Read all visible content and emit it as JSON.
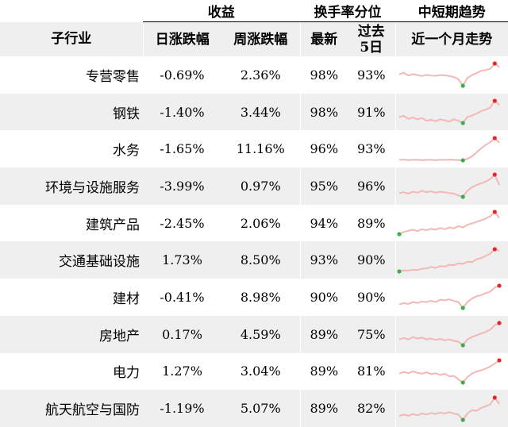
{
  "header": {
    "group_return": "收益",
    "group_turnover": "换手率分位",
    "group_trend": "中短期趋势",
    "col_industry": "子行业",
    "col_daily": "日涨跌幅",
    "col_weekly": "周涨跌幅",
    "col_latest": "最新",
    "col_past5_line1": "过去",
    "col_past5_line2": "5日",
    "col_month": "近一个月走势"
  },
  "colors": {
    "line": "#f4b7b7",
    "max_marker": "#e8262a",
    "min_marker": "#3fae49",
    "stripe": "#efefef"
  },
  "chart_data": {
    "type": "table",
    "columns": [
      "子行业",
      "日涨跌幅",
      "周涨跌幅",
      "最新",
      "过去5日",
      "近一个月走势"
    ],
    "rows": [
      {
        "name": "专营零售",
        "daily": "-0.69%",
        "weekly": "2.36%",
        "latest": "98%",
        "past5": "93%",
        "trend": [
          0.55,
          0.62,
          0.5,
          0.56,
          0.52,
          0.48,
          0.53,
          0.5,
          0.49,
          0.52,
          0.51,
          0.48,
          0.44,
          0.35,
          0.08,
          0.4,
          0.52,
          0.6,
          0.7,
          0.73,
          0.78,
          1.0,
          0.85
        ]
      },
      {
        "name": "钢铁",
        "daily": "-1.40%",
        "weekly": "3.44%",
        "latest": "98%",
        "past5": "91%",
        "trend": [
          0.3,
          0.35,
          0.22,
          0.28,
          0.2,
          0.26,
          0.14,
          0.18,
          0.12,
          0.2,
          0.16,
          0.1,
          0.2,
          0.14,
          0.04,
          0.3,
          0.36,
          0.45,
          0.55,
          0.62,
          0.7,
          1.0,
          0.82
        ]
      },
      {
        "name": "水务",
        "daily": "-1.65%",
        "weekly": "11.16%",
        "latest": "96%",
        "past5": "93%",
        "trend": [
          0.05,
          0.06,
          0.04,
          0.05,
          0.05,
          0.04,
          0.05,
          0.05,
          0.04,
          0.05,
          0.05,
          0.06,
          0.05,
          0.04,
          0.03,
          0.1,
          0.2,
          0.38,
          0.55,
          0.7,
          0.82,
          1.0,
          0.8
        ]
      },
      {
        "name": "环境与设施服务",
        "daily": "-3.99%",
        "weekly": "0.97%",
        "latest": "95%",
        "past5": "96%",
        "trend": [
          0.2,
          0.24,
          0.18,
          0.26,
          0.22,
          0.3,
          0.24,
          0.28,
          0.22,
          0.26,
          0.24,
          0.2,
          0.18,
          0.1,
          0.04,
          0.3,
          0.45,
          0.55,
          0.62,
          0.7,
          0.8,
          1.0,
          0.55
        ]
      },
      {
        "name": "建筑产品",
        "daily": "-2.45%",
        "weekly": "2.06%",
        "latest": "94%",
        "past5": "89%",
        "trend": [
          0.0,
          0.1,
          0.15,
          0.2,
          0.14,
          0.22,
          0.18,
          0.24,
          0.2,
          0.28,
          0.22,
          0.3,
          0.26,
          0.36,
          0.3,
          0.42,
          0.48,
          0.55,
          0.62,
          0.7,
          0.8,
          1.0,
          0.72
        ]
      },
      {
        "name": "交通基础设施",
        "daily": "1.73%",
        "weekly": "8.50%",
        "latest": "93%",
        "past5": "90%",
        "trend": [
          0.0,
          0.05,
          0.04,
          0.08,
          0.06,
          0.12,
          0.14,
          0.2,
          0.16,
          0.24,
          0.22,
          0.3,
          0.28,
          0.36,
          0.34,
          0.44,
          0.42,
          0.55,
          0.6,
          0.7,
          0.8,
          1.0,
          0.92
        ]
      },
      {
        "name": "建材",
        "daily": "-0.41%",
        "weekly": "8.98%",
        "latest": "90%",
        "past5": "90%",
        "trend": [
          0.2,
          0.26,
          0.22,
          0.3,
          0.26,
          0.32,
          0.3,
          0.36,
          0.3,
          0.4,
          0.38,
          0.42,
          0.35,
          0.3,
          0.05,
          0.3,
          0.45,
          0.55,
          0.6,
          0.68,
          0.75,
          0.92,
          1.0
        ]
      },
      {
        "name": "房地产",
        "daily": "0.17%",
        "weekly": "4.59%",
        "latest": "89%",
        "past5": "75%",
        "trend": [
          0.3,
          0.36,
          0.3,
          0.4,
          0.34,
          0.38,
          0.3,
          0.34,
          0.28,
          0.32,
          0.26,
          0.3,
          0.24,
          0.2,
          0.05,
          0.3,
          0.4,
          0.48,
          0.55,
          0.62,
          0.72,
          0.9,
          1.0
        ]
      },
      {
        "name": "电力",
        "daily": "1.27%",
        "weekly": "3.04%",
        "latest": "89%",
        "past5": "81%",
        "trend": [
          0.4,
          0.48,
          0.42,
          0.5,
          0.44,
          0.4,
          0.46,
          0.38,
          0.42,
          0.34,
          0.4,
          0.28,
          0.3,
          0.15,
          0.0,
          0.25,
          0.4,
          0.5,
          0.55,
          0.62,
          0.72,
          0.85,
          1.0
        ]
      },
      {
        "name": "航天航空与国防",
        "daily": "-1.19%",
        "weekly": "5.07%",
        "latest": "89%",
        "past5": "82%",
        "trend": [
          0.2,
          0.25,
          0.2,
          0.28,
          0.22,
          0.3,
          0.26,
          0.32,
          0.28,
          0.34,
          0.3,
          0.36,
          0.3,
          0.25,
          0.02,
          0.3,
          0.45,
          0.42,
          0.55,
          0.62,
          0.7,
          1.0,
          0.72
        ]
      }
    ]
  }
}
